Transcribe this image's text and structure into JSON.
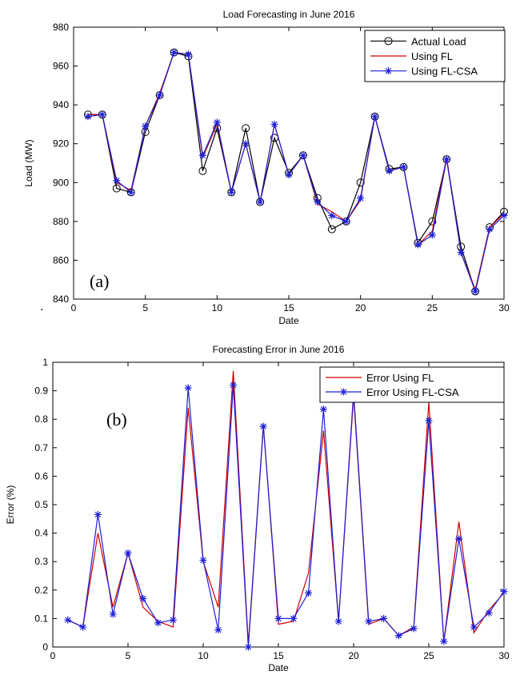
{
  "chart_data": [
    {
      "type": "line",
      "title": "Load Forecasting in June 2016",
      "xlabel": "Date",
      "ylabel": "Load (MW)",
      "xlim": [
        0,
        30
      ],
      "ylim": [
        840,
        980
      ],
      "xticks": [
        0,
        5,
        10,
        15,
        20,
        25,
        30
      ],
      "yticks": [
        840,
        860,
        880,
        900,
        920,
        940,
        960,
        980
      ],
      "grid": false,
      "legend_position": "top-right",
      "panel_label": "(a)",
      "x": [
        1,
        2,
        3,
        4,
        5,
        6,
        7,
        8,
        9,
        10,
        11,
        12,
        13,
        14,
        15,
        16,
        17,
        18,
        19,
        20,
        21,
        22,
        23,
        24,
        25,
        26,
        27,
        28,
        29,
        30
      ],
      "series": [
        {
          "name": "Actual Load",
          "color": "#000000",
          "marker": "circle",
          "values": [
            935,
            935,
            897,
            895,
            926,
            945,
            967,
            965,
            906,
            928,
            895,
            928,
            890,
            923,
            905,
            914,
            892,
            876,
            880,
            900,
            934,
            907,
            908,
            869,
            880,
            912,
            867,
            844,
            877,
            885
          ]
        },
        {
          "name": "Using FL",
          "color": "#d00000",
          "marker": "none",
          "values": [
            935,
            935,
            900,
            896,
            929,
            946,
            967,
            966,
            913,
            930,
            895,
            920,
            890,
            930,
            904,
            914,
            889,
            885,
            880,
            891,
            934,
            906,
            908,
            868,
            875,
            913,
            864,
            845,
            877,
            884
          ]
        },
        {
          "name": "Using FL-CSA",
          "color": "#1f1fd6",
          "marker": "star",
          "values": [
            934,
            935,
            901,
            895,
            929,
            945,
            967,
            966,
            914,
            931,
            895,
            920,
            890,
            930,
            904,
            914,
            890,
            883,
            880,
            892,
            934,
            906,
            908,
            868,
            873,
            912,
            864,
            844,
            876,
            883
          ]
        }
      ]
    },
    {
      "type": "line",
      "title": "Forecasting Error in June 2016",
      "xlabel": "Date",
      "ylabel": "Error (%)",
      "xlim": [
        0,
        30
      ],
      "ylim": [
        0,
        1
      ],
      "xticks": [
        0,
        5,
        10,
        15,
        20,
        25,
        30
      ],
      "yticks": [
        0,
        0.1,
        0.2,
        0.3,
        0.4,
        0.5,
        0.6,
        0.7,
        0.8,
        0.9,
        1
      ],
      "grid": false,
      "legend_position": "top-right",
      "panel_label": "(b)",
      "x": [
        1,
        2,
        3,
        4,
        5,
        6,
        7,
        8,
        9,
        10,
        11,
        12,
        13,
        14,
        15,
        16,
        17,
        18,
        19,
        20,
        21,
        22,
        23,
        24,
        25,
        26,
        27,
        28,
        29,
        30
      ],
      "series": [
        {
          "name": "Error Using FL",
          "color": "#d00000",
          "marker": "none",
          "values": [
            0.095,
            0.07,
            0.4,
            0.14,
            0.33,
            0.14,
            0.09,
            0.07,
            0.84,
            0.3,
            0.14,
            0.97,
            0.01,
            0.78,
            0.08,
            0.09,
            0.26,
            0.76,
            0.09,
            0.88,
            0.08,
            0.1,
            0.04,
            0.07,
            0.86,
            0.02,
            0.44,
            0.05,
            0.13,
            0.19
          ]
        },
        {
          "name": "Error Using FL-CSA",
          "color": "#1f1fd6",
          "marker": "star",
          "values": [
            0.095,
            0.07,
            0.465,
            0.115,
            0.33,
            0.17,
            0.085,
            0.095,
            0.91,
            0.305,
            0.06,
            0.92,
            0.0,
            0.775,
            0.1,
            0.1,
            0.19,
            0.835,
            0.09,
            0.895,
            0.09,
            0.1,
            0.04,
            0.065,
            0.795,
            0.02,
            0.38,
            0.07,
            0.12,
            0.195
          ]
        }
      ]
    }
  ],
  "stray_mark": "."
}
